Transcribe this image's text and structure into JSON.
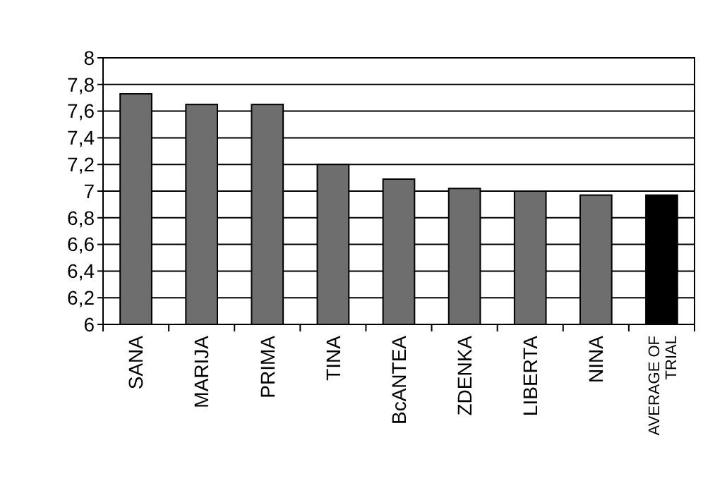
{
  "chart_data": {
    "type": "bar",
    "categories": [
      "SANA",
      "MARIJA",
      "PRIMA",
      "TINA",
      "BcANTEA",
      "ZDENKA",
      "LIBERTA",
      "NINA",
      "AVERAGE OF TRIAL"
    ],
    "values": [
      7.73,
      7.65,
      7.65,
      7.2,
      7.09,
      7.02,
      7.0,
      6.97,
      6.97
    ],
    "colors": [
      "#6e6e6e",
      "#6e6e6e",
      "#6e6e6e",
      "#6e6e6e",
      "#6e6e6e",
      "#6e6e6e",
      "#6e6e6e",
      "#6e6e6e",
      "#000000"
    ],
    "ylim": [
      6,
      8
    ],
    "yticks": [
      6,
      {
        "value": 6.2,
        "label": "6,2"
      },
      {
        "value": 6.4,
        "label": "6,4"
      },
      {
        "value": 6.6,
        "label": "6,6"
      },
      {
        "value": 6.8,
        "label": "6,8"
      },
      7,
      {
        "value": 7.2,
        "label": "7,2"
      },
      {
        "value": 7.4,
        "label": "7,4"
      },
      {
        "value": 7.6,
        "label": "7,6"
      },
      {
        "value": 7.8,
        "label": "7,8"
      },
      8
    ],
    "grid": "y"
  }
}
